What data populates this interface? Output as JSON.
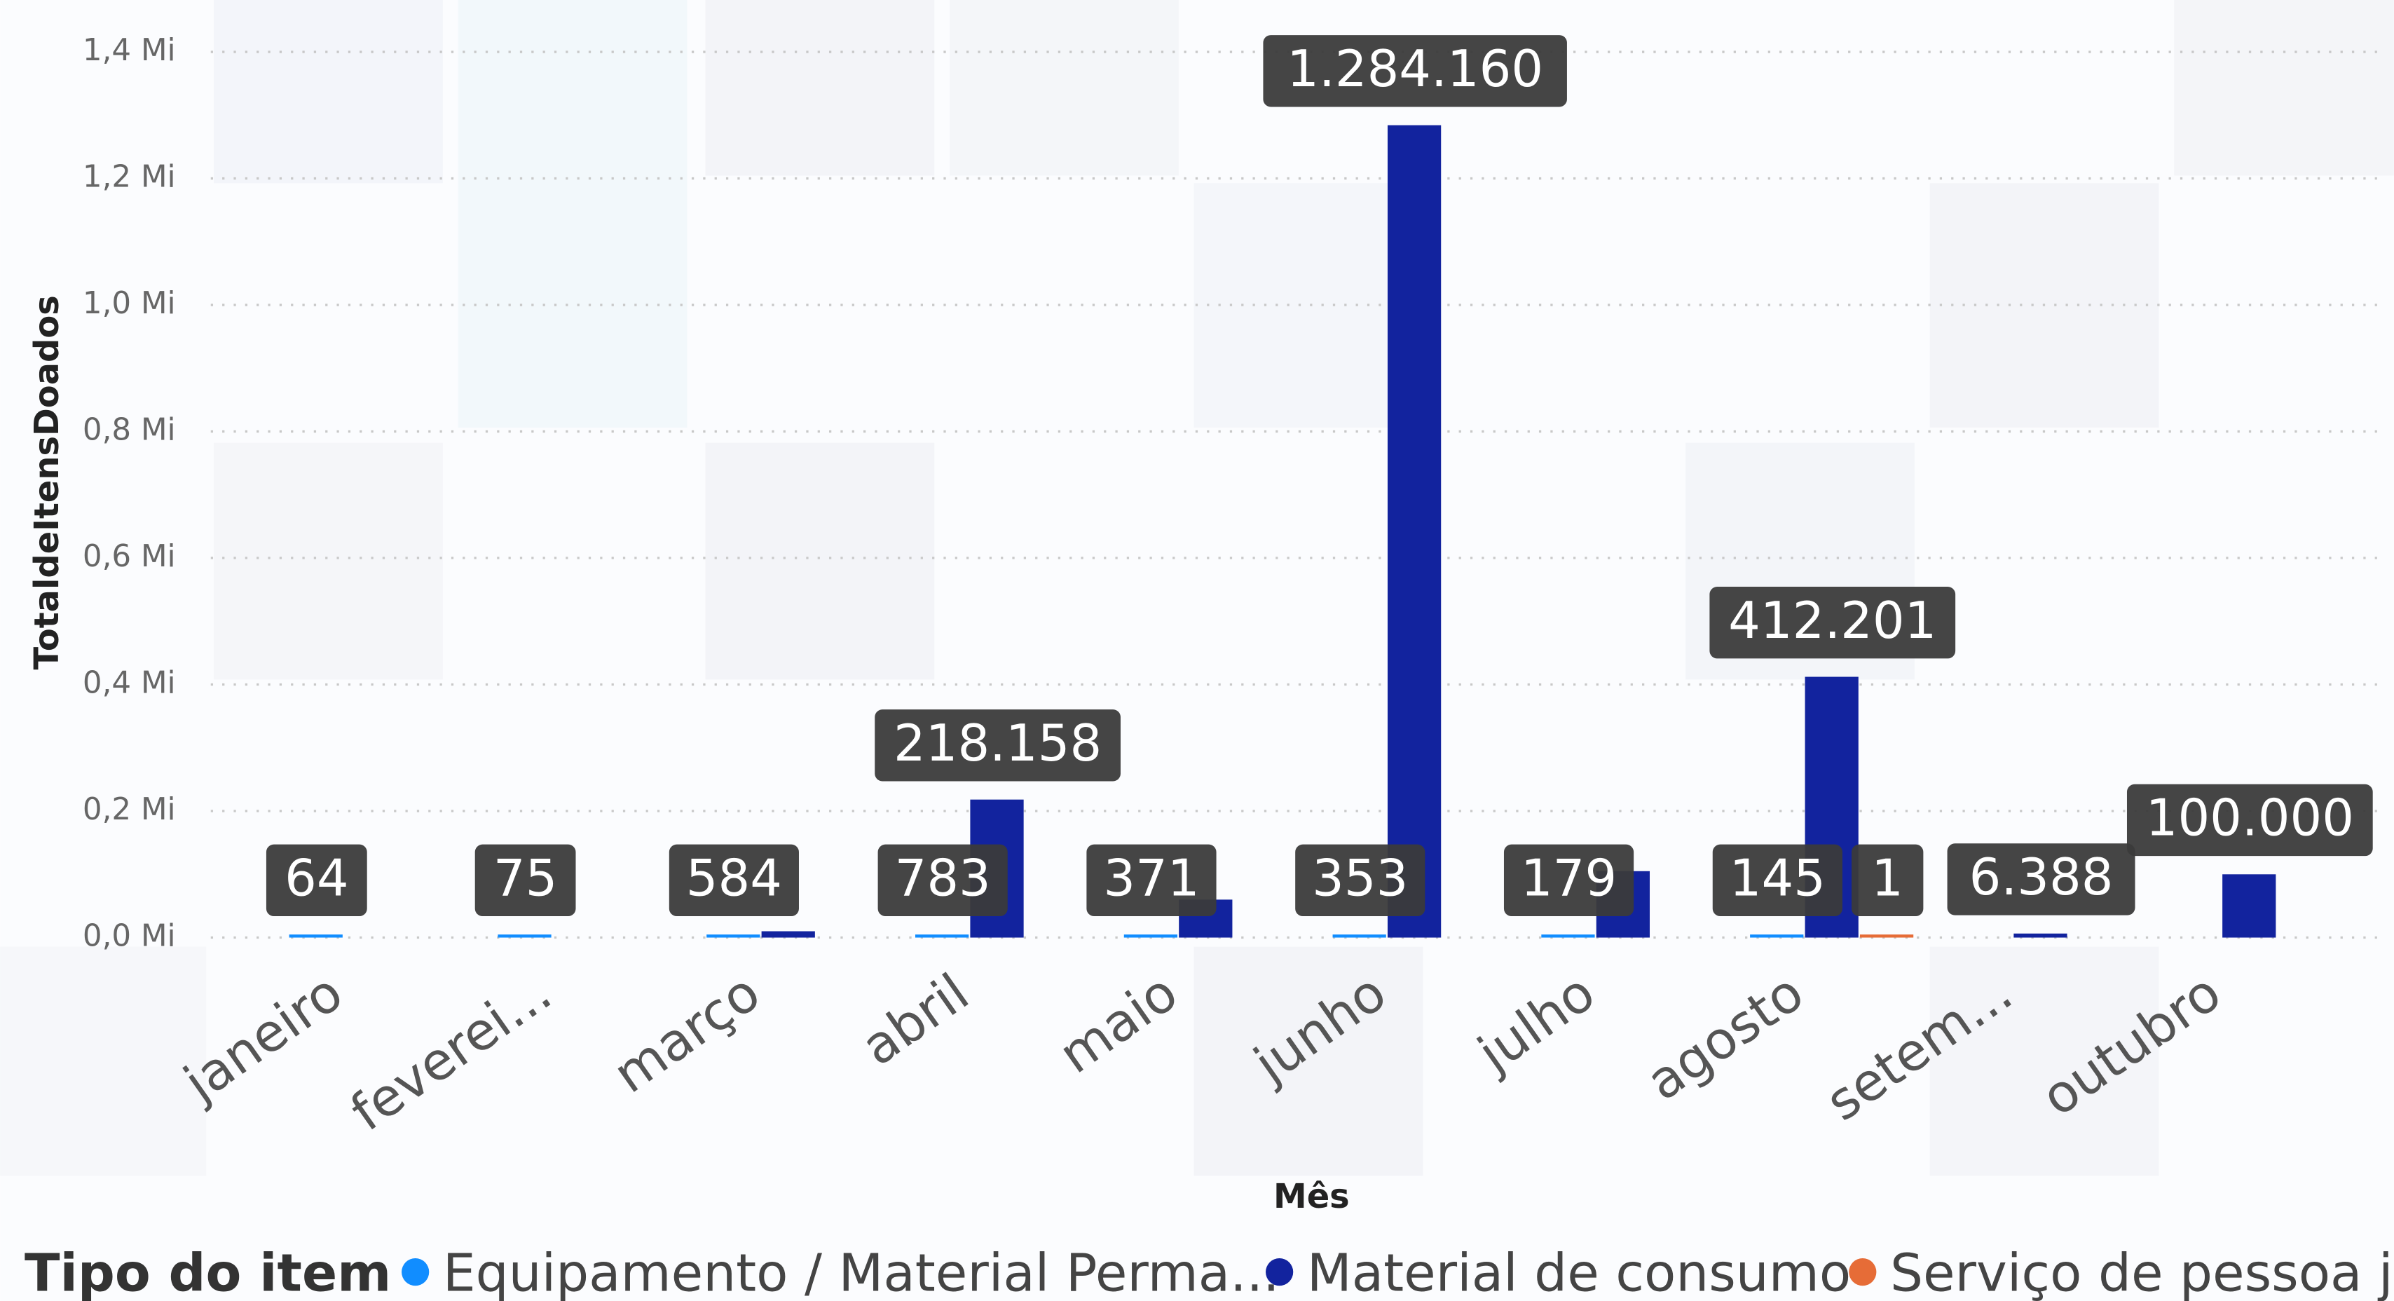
{
  "chart_data": {
    "type": "bar",
    "y_axis_label": "TotaldeItensDoados",
    "x_axis_label": "Mês",
    "legend_title": "Tipo do item",
    "legend": "bottom",
    "grid": true,
    "categories": [
      "janeiro",
      "feverei...",
      "março",
      "abril",
      "maio",
      "junho",
      "julho",
      "agosto",
      "setem...",
      "outubro"
    ],
    "series": [
      {
        "name": "Equipamento / Material Perma...",
        "color": "#118DFF",
        "values": [
          64,
          75,
          584,
          783,
          371,
          353,
          179,
          145,
          null,
          null
        ],
        "value_labels": [
          "64",
          "75",
          "584",
          "783",
          "371",
          "353",
          "179",
          "145",
          null,
          null
        ]
      },
      {
        "name": "Material de consumo",
        "color": "#12239E",
        "values": [
          null,
          null,
          10000,
          218158,
          60000,
          1284160,
          105000,
          412201,
          6388,
          100000
        ],
        "value_labels": [
          null,
          null,
          null,
          "218.158",
          null,
          "1.284.160",
          null,
          "412.201",
          "6.388",
          "100.000"
        ]
      },
      {
        "name": "Serviço de pessoa j...",
        "color": "#E66C37",
        "values": [
          null,
          null,
          null,
          null,
          null,
          null,
          null,
          1,
          null,
          null
        ],
        "value_labels": [
          null,
          null,
          null,
          null,
          null,
          null,
          null,
          "1",
          null,
          null
        ]
      }
    ],
    "ylim": [
      0,
      1400000
    ],
    "yticks": [
      {
        "value": 0,
        "label": "0,0 Mi"
      },
      {
        "value": 200000,
        "label": "0,2 Mi"
      },
      {
        "value": 400000,
        "label": "0,4 Mi"
      },
      {
        "value": 600000,
        "label": "0,6 Mi"
      },
      {
        "value": 800000,
        "label": "0,8 Mi"
      },
      {
        "value": 1000000,
        "label": "1,0 Mi"
      },
      {
        "value": 1200000,
        "label": "1,2 Mi"
      },
      {
        "value": 1400000,
        "label": "1,4 Mi"
      }
    ]
  }
}
